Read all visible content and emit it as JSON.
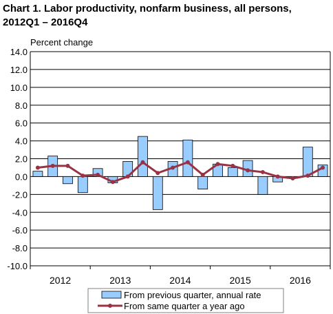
{
  "title_line1": "Chart  1. Labor productivity, nonfarm business, all persons,",
  "title_line2": "2012Q1 – 2016Q4",
  "chart_data": {
    "type": "bar",
    "title": "Chart  1. Labor productivity, nonfarm business, all persons, 2012Q1 – 2016Q4",
    "ylabel": "Percent change",
    "xlabel": "",
    "ylim": [
      -10,
      14
    ],
    "yticks": [
      "14.0",
      "12.0",
      "10.0",
      "8.0",
      "6.0",
      "4.0",
      "2.0",
      "0.0",
      "-2.0",
      "-4.0",
      "-6.0",
      "-8.0",
      "-10.0"
    ],
    "year_labels": [
      "2012",
      "2013",
      "2014",
      "2015",
      "2016"
    ],
    "categories": [
      "2012Q1",
      "2012Q2",
      "2012Q3",
      "2012Q4",
      "2013Q1",
      "2013Q2",
      "2013Q3",
      "2013Q4",
      "2014Q1",
      "2014Q2",
      "2014Q3",
      "2014Q4",
      "2015Q1",
      "2015Q2",
      "2015Q3",
      "2015Q4",
      "2016Q1",
      "2016Q2",
      "2016Q3",
      "2016Q4"
    ],
    "grid": true,
    "legend_position": "bottom",
    "series": [
      {
        "name": "From previous quarter, annual rate",
        "type": "bar",
        "color": "#99ccff",
        "values": [
          0.6,
          2.3,
          -0.8,
          -1.8,
          0.9,
          -0.7,
          1.7,
          4.5,
          -3.7,
          1.7,
          4.1,
          -1.4,
          1.4,
          1.0,
          1.8,
          -2.0,
          -0.6,
          -0.2,
          3.3,
          1.3
        ]
      },
      {
        "name": "From same quarter a year ago",
        "type": "line",
        "color": "#993344",
        "values": [
          1.0,
          1.2,
          1.2,
          0.1,
          0.2,
          -0.6,
          0.0,
          1.6,
          0.4,
          1.0,
          1.6,
          0.2,
          1.4,
          1.2,
          0.7,
          0.5,
          0.0,
          -0.2,
          0.1,
          1.0
        ]
      }
    ]
  }
}
